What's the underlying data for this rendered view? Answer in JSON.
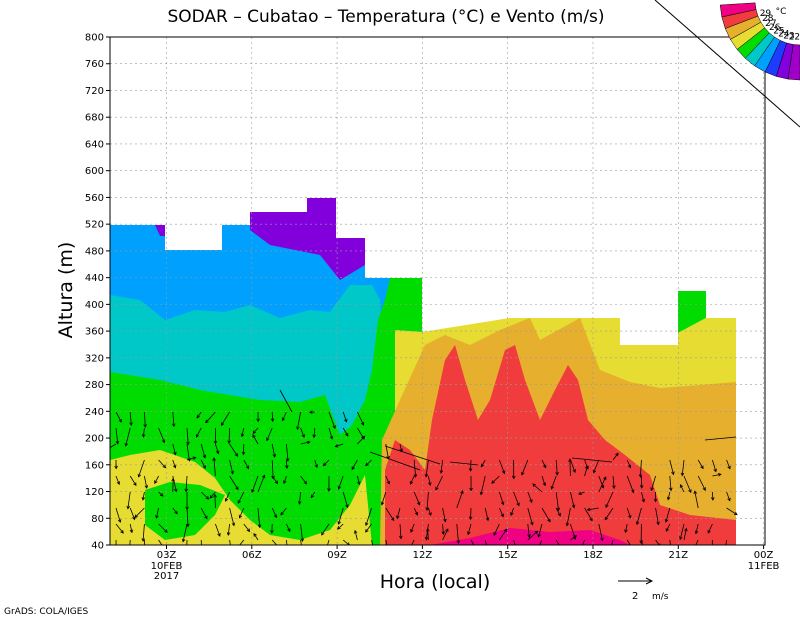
{
  "chart_data": {
    "type": "heatmap",
    "title": "SODAR – Cubatao – Temperatura (°C) e Vento (m/s)",
    "xlabel": "Hora (local)",
    "ylabel": "Altura (m)",
    "ylim": [
      40,
      800
    ],
    "y_ticks": [
      "40",
      "80",
      "120",
      "160",
      "200",
      "240",
      "280",
      "320",
      "360",
      "400",
      "440",
      "480",
      "520",
      "560",
      "600",
      "640",
      "680",
      "720",
      "760",
      "800"
    ],
    "x_ticks": [
      {
        "label": "03Z",
        "sub": [
          "10FEB",
          "2017"
        ]
      },
      {
        "label": "06Z",
        "sub": []
      },
      {
        "label": "09Z",
        "sub": []
      },
      {
        "label": "12Z",
        "sub": []
      },
      {
        "label": "15Z",
        "sub": []
      },
      {
        "label": "18Z",
        "sub": []
      },
      {
        "label": "21Z",
        "sub": []
      },
      {
        "label": "00Z",
        "sub": [
          "11FEB"
        ]
      }
    ],
    "colorbar": {
      "unit": "°C",
      "levels": [
        "22",
        "23",
        "24",
        "25",
        "26",
        "27",
        "28",
        "29"
      ],
      "colors": [
        "#a000c8",
        "#8200dc",
        "#1e3cff",
        "#00a0ff",
        "#00c8c8",
        "#00dc00",
        "#e6dc32",
        "#e6af2d",
        "#f03c3c",
        "#f00082"
      ]
    },
    "wind_reference": {
      "value": "2",
      "unit": "m/s"
    },
    "grid": true
  },
  "credit": "GrADS: COLA/IGES"
}
